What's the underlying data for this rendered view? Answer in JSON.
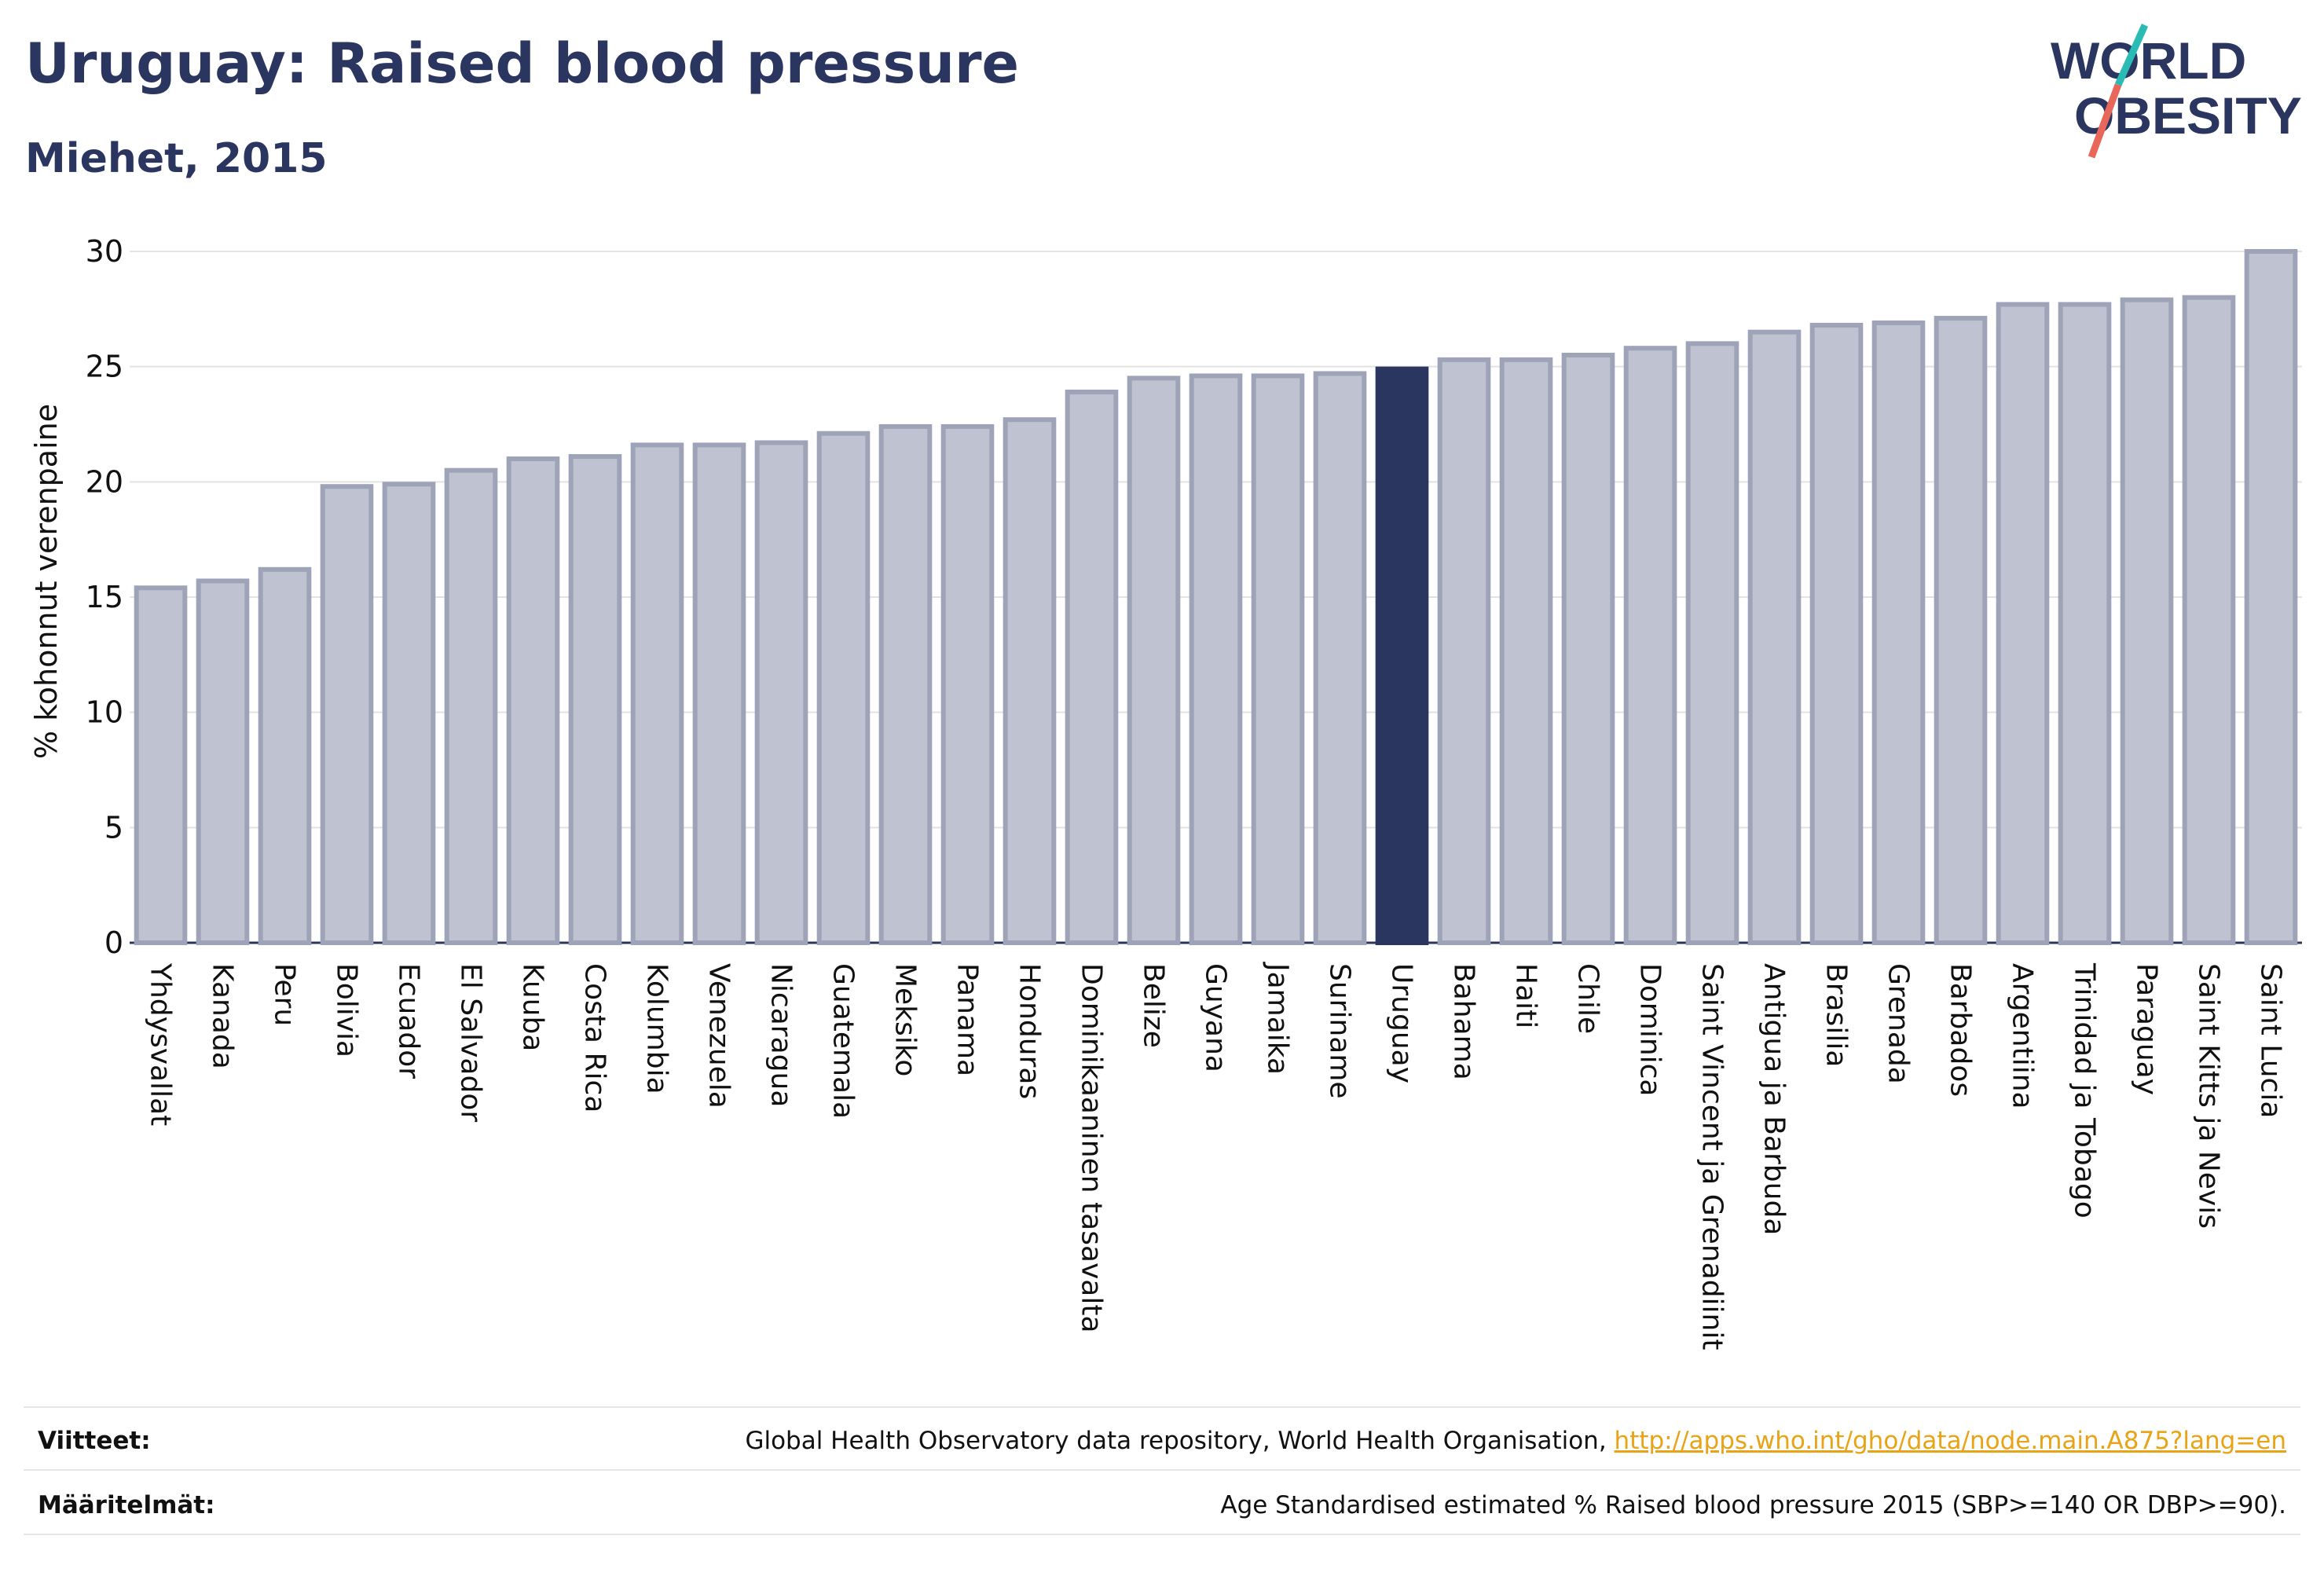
{
  "title": "Uruguay: Raised blood pressure",
  "subtitle": "Miehet, 2015",
  "logo": {
    "line1": "WORLD",
    "line2": "OBESITY"
  },
  "colors": {
    "bar": "#bfc3d1",
    "bar_stroke": "#9ea3b8",
    "highlight": "#2a3560",
    "text": "#2a3560",
    "grid": "#e3e3e3",
    "link": "#e8a317"
  },
  "chart_data": {
    "type": "bar",
    "ylabel": "% kohonnut verenpaine",
    "ylim": [
      0,
      30
    ],
    "yticks": [
      0,
      5,
      10,
      15,
      20,
      25,
      30
    ],
    "grid": true,
    "highlight": "Uruguay",
    "categories": [
      "Yhdysvallat",
      "Kanada",
      "Peru",
      "Bolivia",
      "Ecuador",
      "El Salvador",
      "Kuuba",
      "Costa Rica",
      "Kolumbia",
      "Venezuela",
      "Nicaragua",
      "Guatemala",
      "Meksiko",
      "Panama",
      "Honduras",
      "Dominikaaninen tasavalta",
      "Belize",
      "Guyana",
      "Jamaika",
      "Suriname",
      "Uruguay",
      "Bahama",
      "Haiti",
      "Chile",
      "Dominica",
      "Saint Vincent ja Grenadiinit",
      "Antigua ja Barbuda",
      "Brasilia",
      "Grenada",
      "Barbados",
      "Argentiina",
      "Trinidad ja Tobago",
      "Paraguay",
      "Saint Kitts ja Nevis",
      "Saint Lucia"
    ],
    "values": [
      15.4,
      15.7,
      16.2,
      19.8,
      19.9,
      20.5,
      21.0,
      21.1,
      21.6,
      21.6,
      21.7,
      22.1,
      22.4,
      22.4,
      22.7,
      23.9,
      24.5,
      24.6,
      24.6,
      24.7,
      24.9,
      25.3,
      25.3,
      25.5,
      25.8,
      26.0,
      26.5,
      26.8,
      26.9,
      27.1,
      27.7,
      27.7,
      27.9,
      28.0,
      30.0
    ]
  },
  "footer": {
    "sources_label": "Viitteet:",
    "sources_text": "Global Health Observatory data repository, World Health Organisation, ",
    "sources_link": "http://apps.who.int/gho/data/node.main.A875?lang=en",
    "definitions_label": "Määritelmät:",
    "definitions_text": "Age Standardised estimated % Raised blood pressure 2015 (SBP>=140 OR DBP>=90)."
  }
}
